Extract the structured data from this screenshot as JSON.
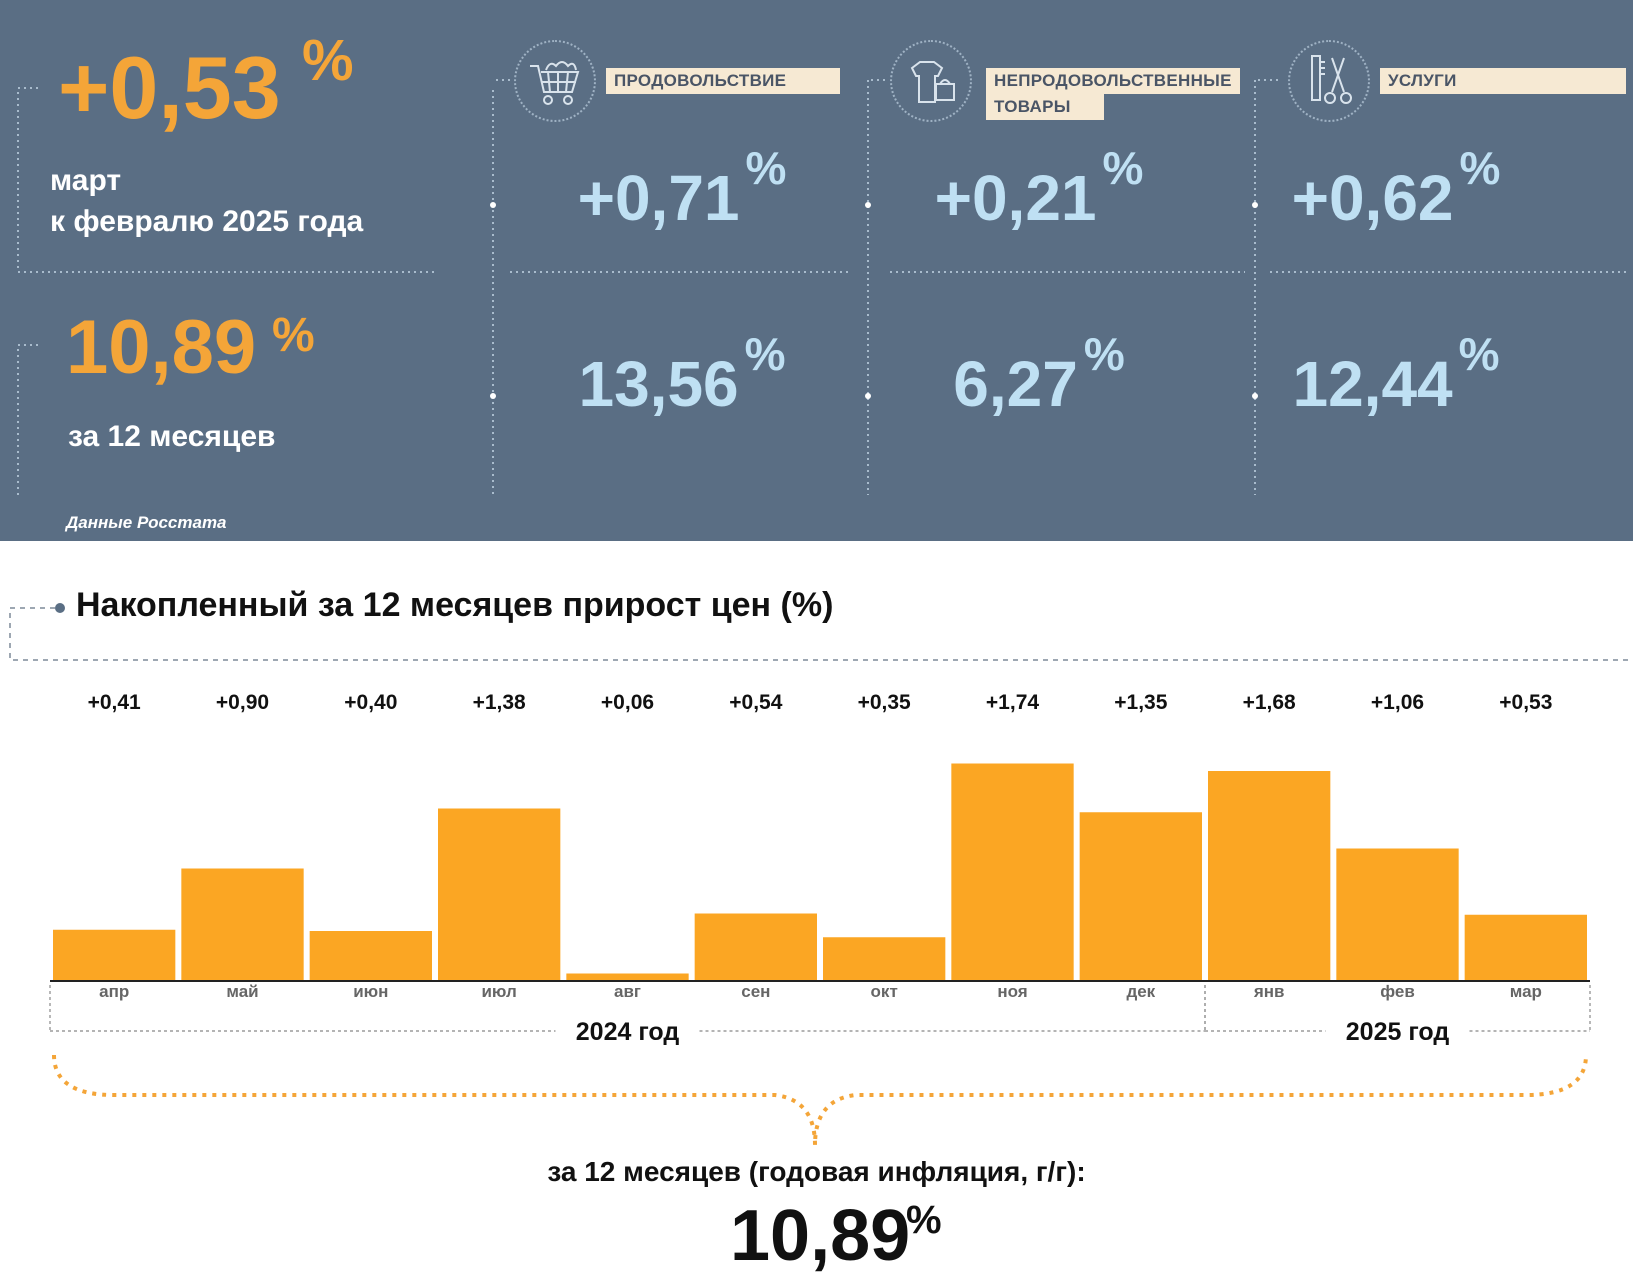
{
  "header": {
    "monthly": {
      "value": "+0,53",
      "pct": "%",
      "line1": "март",
      "line2": "к февралю 2025 года"
    },
    "annual": {
      "value": "10,89",
      "pct": "%",
      "label": "за 12 месяцев"
    },
    "categories": [
      {
        "label_line1": "ПРОДОВОЛЬСТВИЕ",
        "label_line2": "",
        "icon": "shopping-cart-icon",
        "monthly": "+0,71",
        "annual": "13,56",
        "pct": "%"
      },
      {
        "label_line1": "НЕПРОДОВОЛЬСТВЕННЫЕ",
        "label_line2": "ТОВАРЫ",
        "icon": "clothes-bag-icon",
        "monthly": "+0,21",
        "annual": "6,27",
        "pct": "%"
      },
      {
        "label_line1": "УСЛУГИ",
        "label_line2": "",
        "icon": "comb-scissors-icon",
        "monthly": "+0,62",
        "annual": "12,44",
        "pct": "%"
      }
    ],
    "source": "Данные Росстата"
  },
  "colors": {
    "panel": "#5a6e84",
    "accent": "#f4a538",
    "light_value": "#bfe0f3",
    "bar": "#fba623"
  },
  "chart_data": {
    "type": "bar",
    "title": "Накопленный за 12 месяцев прирост цен (%)",
    "categories": [
      "апр",
      "май",
      "июн",
      "июл",
      "авг",
      "сен",
      "окт",
      "ноя",
      "дек",
      "янв",
      "фев",
      "мар"
    ],
    "values": [
      0.41,
      0.9,
      0.4,
      1.38,
      0.06,
      0.54,
      0.35,
      1.74,
      1.35,
      1.68,
      1.06,
      0.53
    ],
    "value_labels": [
      "+0,41",
      "+0,90",
      "+0,40",
      "+1,38",
      "+0,06",
      "+0,54",
      "+0,35",
      "+1,74",
      "+1,35",
      "+1,68",
      "+1,06",
      "+0,53"
    ],
    "groups": [
      {
        "label": "2024 год",
        "from": 0,
        "to": 8
      },
      {
        "label": "2025 год",
        "from": 9,
        "to": 11
      }
    ],
    "ylim": [
      0,
      1.8
    ]
  },
  "summary": {
    "label": "за 12 месяцев (годовая инфляция, г/г):",
    "value": "10,89",
    "pct": "%"
  }
}
